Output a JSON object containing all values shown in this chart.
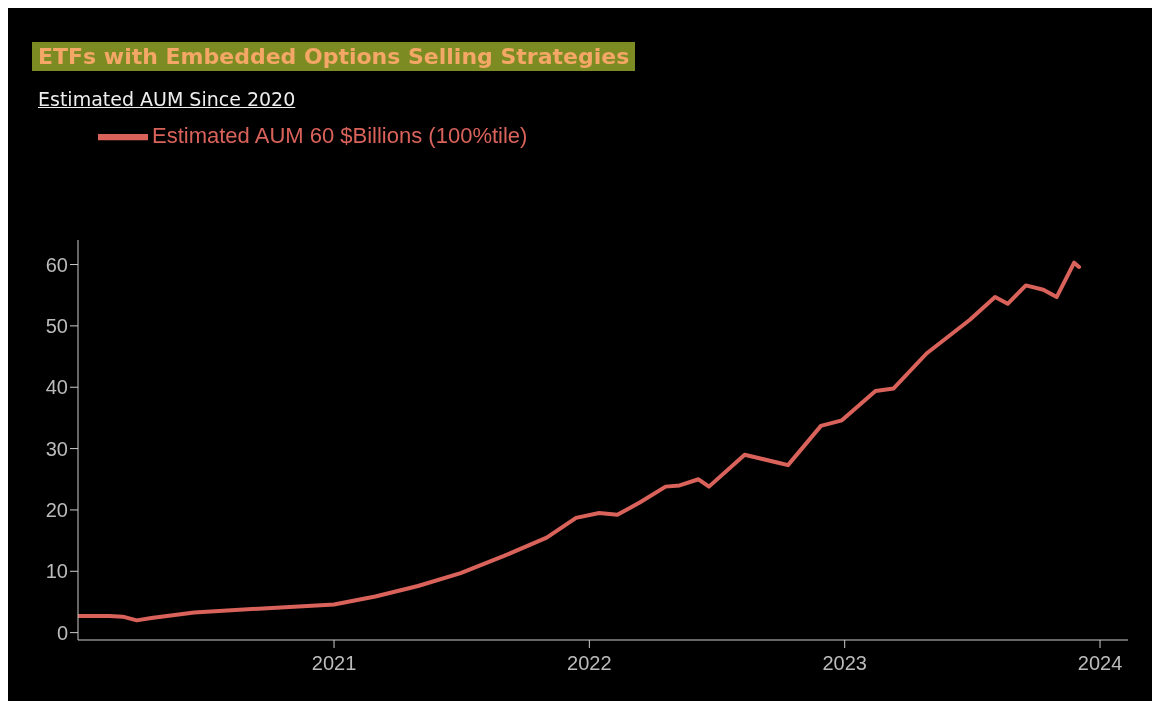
{
  "chart_data": {
    "type": "line",
    "title": "ETFs with Embedded Options Selling Strategies",
    "subtitle": "Estimated AUM Since 2020",
    "x": [
      "2020-01-01",
      "2020-02-15",
      "2020-03-05",
      "2020-03-25",
      "2020-04-15",
      "2020-06-15",
      "2020-09-15",
      "2021-01-01",
      "2021-03-01",
      "2021-05-01",
      "2021-07-01",
      "2021-09-01",
      "2021-11-01",
      "2021-12-13",
      "2022-01-15",
      "2022-02-10",
      "2022-03-14",
      "2022-04-20",
      "2022-05-10",
      "2022-06-06",
      "2022-06-21",
      "2022-08-11",
      "2022-10-01",
      "2022-10-12",
      "2022-11-28",
      "2022-12-28",
      "2023-02-14",
      "2023-03-12",
      "2023-04-28",
      "2023-06-29",
      "2023-08-04",
      "2023-08-22",
      "2023-09-17",
      "2023-10-12",
      "2023-10-31",
      "2023-11-25",
      "2023-12-02"
    ],
    "series": [
      {
        "name": "Estimated AUM 60 $Billions (100%tile)",
        "color": "#d9625a",
        "values": [
          2.7,
          2.7,
          2.6,
          2.0,
          2.4,
          3.3,
          3.9,
          4.6,
          5.9,
          7.6,
          9.7,
          12.5,
          15.5,
          18.7,
          19.5,
          19.2,
          21.2,
          23.8,
          24.0,
          25.0,
          23.8,
          29.0,
          27.6,
          27.3,
          33.7,
          34.6,
          39.4,
          39.8,
          45.5,
          51.0,
          54.7,
          53.6,
          56.6,
          55.9,
          54.7,
          60.3,
          59.6
        ]
      }
    ],
    "xlim": [
      "2020-01-01",
      "2024-02-10"
    ],
    "xticks": [
      {
        "value": "2021-01-01",
        "label": "2021"
      },
      {
        "value": "2022-01-01",
        "label": "2022"
      },
      {
        "value": "2023-01-01",
        "label": "2023"
      },
      {
        "value": "2024-01-01",
        "label": "2024"
      }
    ],
    "ylim": [
      -1.2,
      64
    ],
    "yticks": [
      0,
      10,
      20,
      30,
      40,
      50,
      60
    ],
    "legend": "top left",
    "grid": false,
    "marker": "none",
    "line_style": "solid"
  }
}
